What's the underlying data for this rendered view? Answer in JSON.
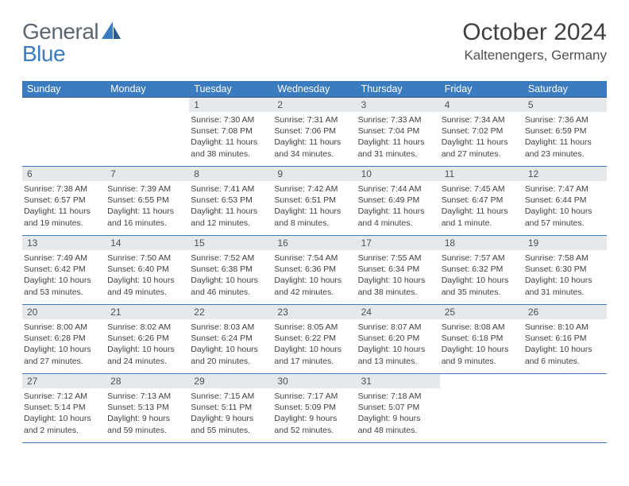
{
  "brand": {
    "part1": "General",
    "part2": "Blue"
  },
  "title": "October 2024",
  "location": "Kaltenengers, Germany",
  "colors": {
    "header_bg": "#3b7bbf",
    "header_text": "#ffffff",
    "daynum_bg": "#e6e9ec",
    "text": "#404040",
    "row_border": "#3b7bbf"
  },
  "fonts": {
    "title_size": 30,
    "location_size": 17,
    "dayhead_size": 12.5,
    "body_size": 10.5
  },
  "days_of_week": [
    "Sunday",
    "Monday",
    "Tuesday",
    "Wednesday",
    "Thursday",
    "Friday",
    "Saturday"
  ],
  "weeks": [
    [
      null,
      null,
      {
        "n": "1",
        "sunrise": "7:30 AM",
        "sunset": "7:08 PM",
        "daylight": "11 hours and 38 minutes."
      },
      {
        "n": "2",
        "sunrise": "7:31 AM",
        "sunset": "7:06 PM",
        "daylight": "11 hours and 34 minutes."
      },
      {
        "n": "3",
        "sunrise": "7:33 AM",
        "sunset": "7:04 PM",
        "daylight": "11 hours and 31 minutes."
      },
      {
        "n": "4",
        "sunrise": "7:34 AM",
        "sunset": "7:02 PM",
        "daylight": "11 hours and 27 minutes."
      },
      {
        "n": "5",
        "sunrise": "7:36 AM",
        "sunset": "6:59 PM",
        "daylight": "11 hours and 23 minutes."
      }
    ],
    [
      {
        "n": "6",
        "sunrise": "7:38 AM",
        "sunset": "6:57 PM",
        "daylight": "11 hours and 19 minutes."
      },
      {
        "n": "7",
        "sunrise": "7:39 AM",
        "sunset": "6:55 PM",
        "daylight": "11 hours and 16 minutes."
      },
      {
        "n": "8",
        "sunrise": "7:41 AM",
        "sunset": "6:53 PM",
        "daylight": "11 hours and 12 minutes."
      },
      {
        "n": "9",
        "sunrise": "7:42 AM",
        "sunset": "6:51 PM",
        "daylight": "11 hours and 8 minutes."
      },
      {
        "n": "10",
        "sunrise": "7:44 AM",
        "sunset": "6:49 PM",
        "daylight": "11 hours and 4 minutes."
      },
      {
        "n": "11",
        "sunrise": "7:45 AM",
        "sunset": "6:47 PM",
        "daylight": "11 hours and 1 minute."
      },
      {
        "n": "12",
        "sunrise": "7:47 AM",
        "sunset": "6:44 PM",
        "daylight": "10 hours and 57 minutes."
      }
    ],
    [
      {
        "n": "13",
        "sunrise": "7:49 AM",
        "sunset": "6:42 PM",
        "daylight": "10 hours and 53 minutes."
      },
      {
        "n": "14",
        "sunrise": "7:50 AM",
        "sunset": "6:40 PM",
        "daylight": "10 hours and 49 minutes."
      },
      {
        "n": "15",
        "sunrise": "7:52 AM",
        "sunset": "6:38 PM",
        "daylight": "10 hours and 46 minutes."
      },
      {
        "n": "16",
        "sunrise": "7:54 AM",
        "sunset": "6:36 PM",
        "daylight": "10 hours and 42 minutes."
      },
      {
        "n": "17",
        "sunrise": "7:55 AM",
        "sunset": "6:34 PM",
        "daylight": "10 hours and 38 minutes."
      },
      {
        "n": "18",
        "sunrise": "7:57 AM",
        "sunset": "6:32 PM",
        "daylight": "10 hours and 35 minutes."
      },
      {
        "n": "19",
        "sunrise": "7:58 AM",
        "sunset": "6:30 PM",
        "daylight": "10 hours and 31 minutes."
      }
    ],
    [
      {
        "n": "20",
        "sunrise": "8:00 AM",
        "sunset": "6:28 PM",
        "daylight": "10 hours and 27 minutes."
      },
      {
        "n": "21",
        "sunrise": "8:02 AM",
        "sunset": "6:26 PM",
        "daylight": "10 hours and 24 minutes."
      },
      {
        "n": "22",
        "sunrise": "8:03 AM",
        "sunset": "6:24 PM",
        "daylight": "10 hours and 20 minutes."
      },
      {
        "n": "23",
        "sunrise": "8:05 AM",
        "sunset": "6:22 PM",
        "daylight": "10 hours and 17 minutes."
      },
      {
        "n": "24",
        "sunrise": "8:07 AM",
        "sunset": "6:20 PM",
        "daylight": "10 hours and 13 minutes."
      },
      {
        "n": "25",
        "sunrise": "8:08 AM",
        "sunset": "6:18 PM",
        "daylight": "10 hours and 9 minutes."
      },
      {
        "n": "26",
        "sunrise": "8:10 AM",
        "sunset": "6:16 PM",
        "daylight": "10 hours and 6 minutes."
      }
    ],
    [
      {
        "n": "27",
        "sunrise": "7:12 AM",
        "sunset": "5:14 PM",
        "daylight": "10 hours and 2 minutes."
      },
      {
        "n": "28",
        "sunrise": "7:13 AM",
        "sunset": "5:13 PM",
        "daylight": "9 hours and 59 minutes."
      },
      {
        "n": "29",
        "sunrise": "7:15 AM",
        "sunset": "5:11 PM",
        "daylight": "9 hours and 55 minutes."
      },
      {
        "n": "30",
        "sunrise": "7:17 AM",
        "sunset": "5:09 PM",
        "daylight": "9 hours and 52 minutes."
      },
      {
        "n": "31",
        "sunrise": "7:18 AM",
        "sunset": "5:07 PM",
        "daylight": "9 hours and 48 minutes."
      },
      null,
      null
    ]
  ],
  "labels": {
    "sunrise": "Sunrise:",
    "sunset": "Sunset:",
    "daylight": "Daylight:"
  }
}
